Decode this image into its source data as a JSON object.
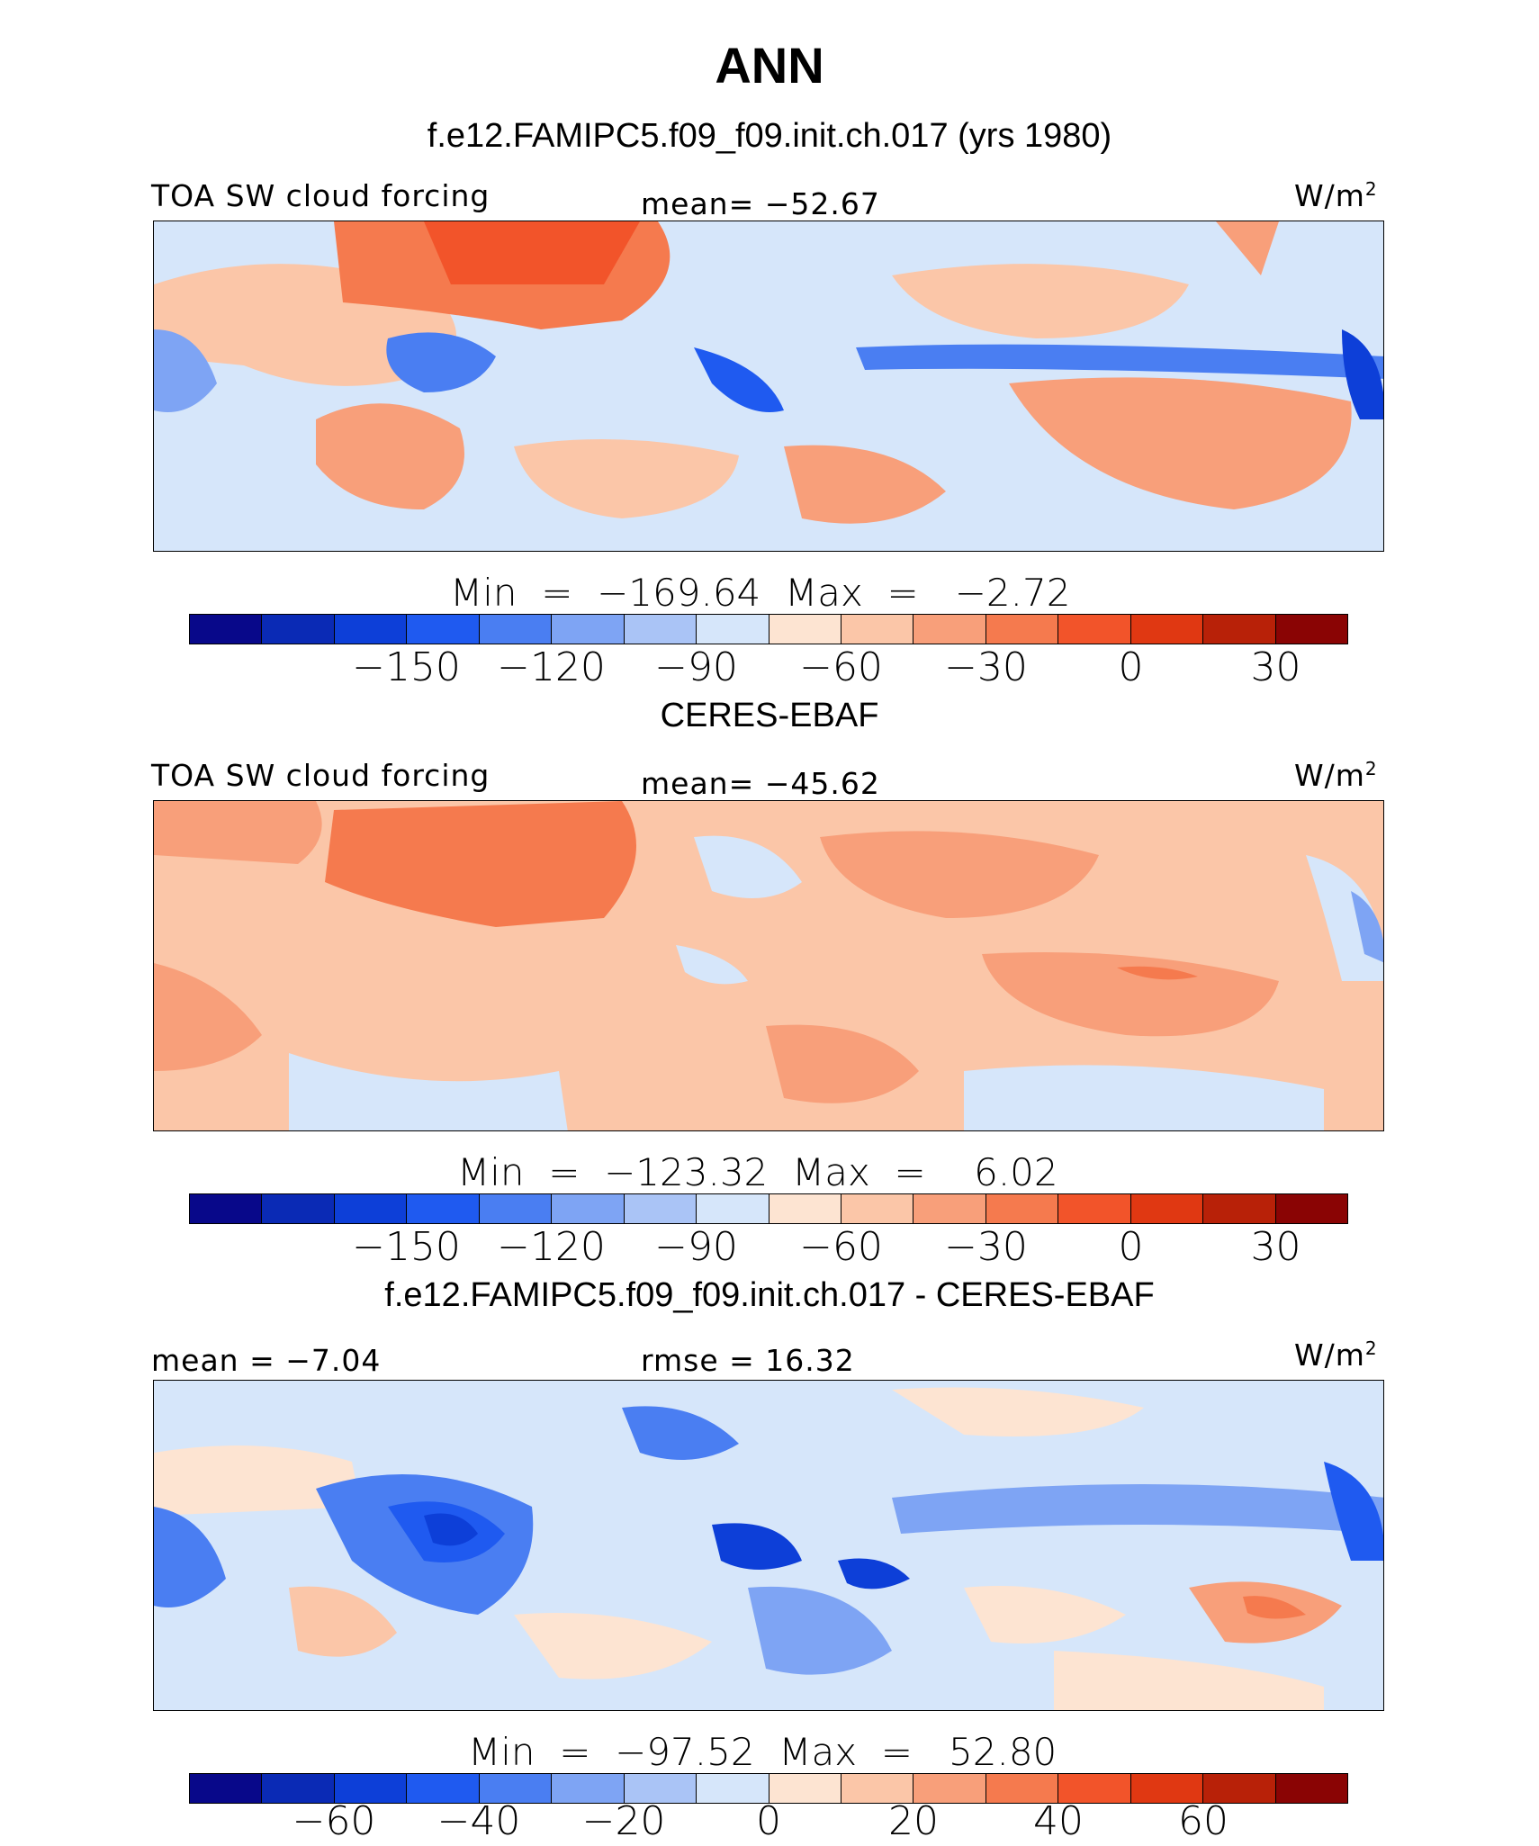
{
  "figure": {
    "title": "ANN",
    "colorbar_colors": [
      "#08088a",
      "#0a2ab5",
      "#0d3fd8",
      "#1f5af0",
      "#4a7ef2",
      "#7ea4f4",
      "#aac4f6",
      "#d6e6fa",
      "#fde4d2",
      "#fbc6a8",
      "#f89f7a",
      "#f57a4e",
      "#f2542a",
      "#e03812",
      "#b82108",
      "#8a0404"
    ]
  },
  "chart_data": [
    {
      "type": "heatmap",
      "subtitle": "f.e12.FAMIPC5.f09_f09.init.ch.017 (yrs 1980)",
      "left_label": "TOA SW cloud forcing",
      "center_label": "mean=  −52.67",
      "units_base": "W/m",
      "units_exp": "2",
      "minmax": "Min  =  −169.64  Max  =   −2.72",
      "min": -169.64,
      "max": -2.72,
      "mean": -52.67,
      "colorbar_range": [
        -195,
        45
      ],
      "colorbar_ticks": [
        "−150",
        "−120",
        "−90",
        "−60",
        "−30",
        "0",
        "30"
      ],
      "colorbar_tick_values": [
        -150,
        -120,
        -90,
        -60,
        -30,
        0,
        30
      ]
    },
    {
      "type": "heatmap",
      "subtitle": "CERES-EBAF",
      "left_label": "TOA SW cloud forcing",
      "center_label": "mean=  −45.62",
      "units_base": "W/m",
      "units_exp": "2",
      "minmax": "Min  =  −123.32  Max  =    6.02",
      "min": -123.32,
      "max": 6.02,
      "mean": -45.62,
      "colorbar_range": [
        -195,
        45
      ],
      "colorbar_ticks": [
        "−150",
        "−120",
        "−90",
        "−60",
        "−30",
        "0",
        "30"
      ],
      "colorbar_tick_values": [
        -150,
        -120,
        -90,
        -60,
        -30,
        0,
        30
      ]
    },
    {
      "type": "heatmap",
      "subtitle": "f.e12.FAMIPC5.f09_f09.init.ch.017 - CERES-EBAF",
      "left_label": "mean  =   −7.04",
      "center_label": "rmse  =   16.32",
      "units_base": "W/m",
      "units_exp": "2",
      "minmax": "Min  =  −97.52  Max  =   52.80",
      "min": -97.52,
      "max": 52.8,
      "mean": -7.04,
      "rmse": 16.32,
      "colorbar_range": [
        -80,
        80
      ],
      "colorbar_ticks": [
        "−60",
        "−40",
        "−20",
        "0",
        "20",
        "40",
        "60"
      ],
      "colorbar_tick_values": [
        -60,
        -40,
        -20,
        0,
        20,
        40,
        60
      ]
    }
  ]
}
